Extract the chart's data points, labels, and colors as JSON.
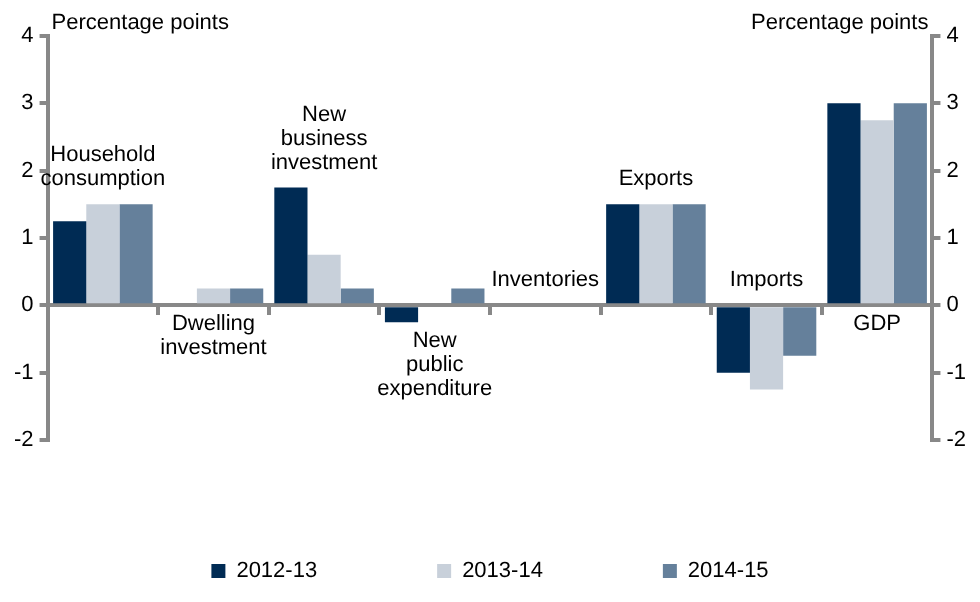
{
  "chart_data": {
    "type": "bar",
    "ylabel": "Percentage points",
    "y2label": "Percentage points",
    "categories": [
      "Household consumption",
      "Dwelling investment",
      "New business investment",
      "New public expenditure",
      "Inventories",
      "Exports",
      "Imports",
      "GDP"
    ],
    "series": [
      {
        "name": "2012-13",
        "color": "#002b54",
        "values": [
          1.25,
          0,
          1.75,
          -0.25,
          0,
          1.5,
          -1,
          3
        ]
      },
      {
        "name": "2013-14",
        "color": "#c8d0da",
        "values": [
          1.5,
          0.25,
          0.75,
          0,
          0,
          1.5,
          -1.25,
          2.75
        ]
      },
      {
        "name": "2014-15",
        "color": "#65809b",
        "values": [
          1.5,
          0.25,
          0.25,
          0.25,
          0,
          1.5,
          -0.75,
          3
        ]
      }
    ],
    "ylim": [
      -2,
      4
    ],
    "yticks": [
      -2,
      -1,
      0,
      1,
      2,
      3,
      4
    ],
    "y2lim": [
      -2,
      4
    ],
    "y2ticks": [
      -2,
      -1,
      0,
      1,
      2,
      3,
      4
    ],
    "grid": false,
    "legend": "bottom"
  }
}
